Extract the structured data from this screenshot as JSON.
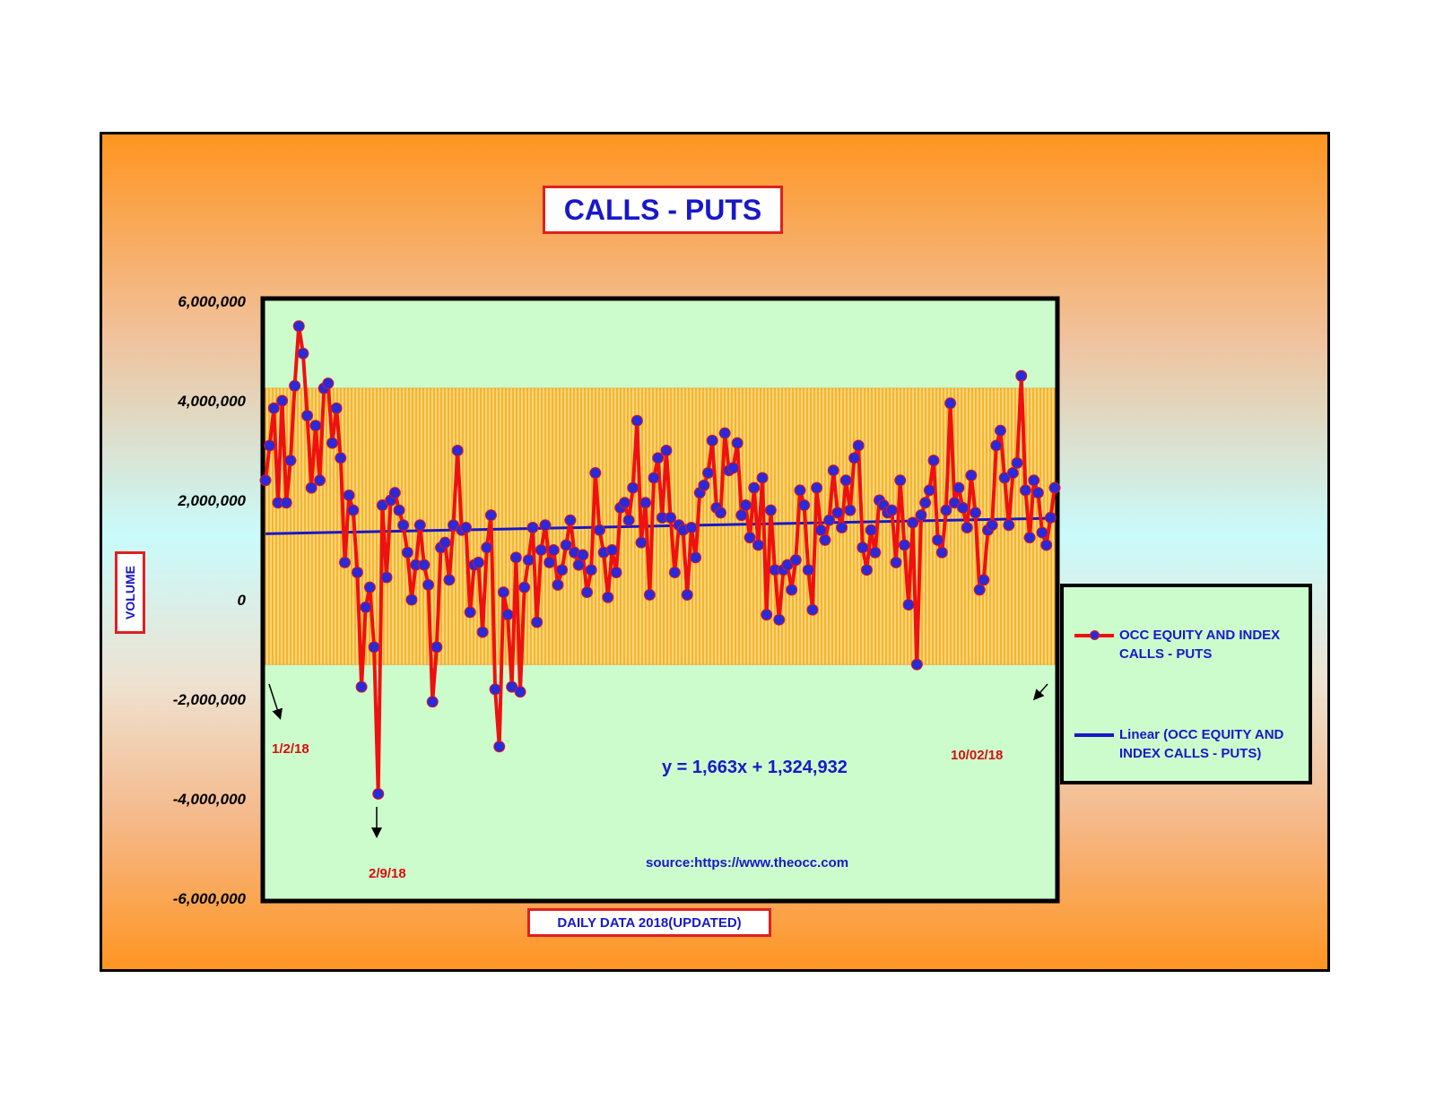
{
  "page": {
    "background": "#ffffff"
  },
  "colors": {
    "series": "#ee1111",
    "marker": "#2a2ad8",
    "trend": "#1818c8",
    "plot_bg": "#ccfccc",
    "band_fill": "#f5b530",
    "band_stroke": "#e8a020"
  },
  "chart_data": {
    "type": "line",
    "title": "CALLS - PUTS",
    "xlabel": "DAILY DATA 2018(UPDATED)",
    "ylabel": "VOLUME",
    "ylim": [
      -6000000,
      6000000
    ],
    "y_ticks": [
      6000000,
      4000000,
      2000000,
      0,
      -2000000,
      -4000000,
      -6000000
    ],
    "y_tick_labels": [
      "6,000,000",
      "4,000,000",
      "2,000,000",
      "0",
      "-2,000,000",
      "-4,000,000",
      "-6,000,000"
    ],
    "x_range": [
      1,
      189
    ],
    "band": {
      "upper": 4250000,
      "lower": -1300000
    },
    "series": [
      {
        "name": "OCC EQUITY AND INDEX CALLS - PUTS",
        "values": [
          2400000,
          3100000,
          3850000,
          1950000,
          4000000,
          1950000,
          2800000,
          4300000,
          5500000,
          4950000,
          3700000,
          2250000,
          3500000,
          2400000,
          4250000,
          4350000,
          3150000,
          3850000,
          2850000,
          750000,
          2100000,
          1800000,
          550000,
          -1750000,
          -150000,
          250000,
          -950000,
          -3900000,
          1900000,
          450000,
          2000000,
          2150000,
          1800000,
          1500000,
          950000,
          0,
          700000,
          1500000,
          700000,
          300000,
          -2050000,
          -950000,
          1050000,
          1150000,
          400000,
          1500000,
          3000000,
          1400000,
          1450000,
          -250000,
          700000,
          750000,
          -650000,
          1050000,
          1700000,
          -1800000,
          -2950000,
          150000,
          -300000,
          -1750000,
          850000,
          -1850000,
          250000,
          800000,
          1450000,
          -450000,
          1000000,
          1500000,
          750000,
          1000000,
          300000,
          600000,
          1100000,
          1600000,
          950000,
          700000,
          900000,
          150000,
          600000,
          2550000,
          1400000,
          950000,
          50000,
          1000000,
          550000,
          1850000,
          1950000,
          1600000,
          2250000,
          3600000,
          1150000,
          1950000,
          100000,
          2450000,
          2850000,
          1650000,
          3000000,
          1650000,
          550000,
          1500000,
          1400000,
          100000,
          1450000,
          850000,
          2150000,
          2300000,
          2550000,
          3200000,
          1850000,
          1750000,
          3350000,
          2600000,
          2650000,
          3150000,
          1700000,
          1900000,
          1250000,
          2250000,
          1100000,
          2450000,
          -300000,
          1800000,
          600000,
          -400000,
          600000,
          700000,
          200000,
          800000,
          2200000,
          1900000,
          600000,
          -200000,
          2250000,
          1400000,
          1200000,
          1600000,
          2600000,
          1750000,
          1450000,
          2400000,
          1800000,
          2850000,
          3100000,
          1050000,
          600000,
          1400000,
          950000,
          2000000,
          1900000,
          1750000,
          1800000,
          750000,
          2400000,
          1100000,
          -100000,
          1550000,
          -1300000,
          1700000,
          1950000,
          2200000,
          2800000,
          1200000,
          950000,
          1800000,
          3950000,
          1950000,
          2250000,
          1850000,
          1450000,
          2500000,
          1750000,
          200000,
          400000,
          1400000,
          1500000,
          3100000,
          3400000,
          2450000,
          1500000,
          2550000,
          2750000,
          4500000,
          2200000,
          1250000,
          2400000,
          2150000,
          1350000,
          1100000,
          1650000,
          2250000
        ]
      },
      {
        "name": "Linear (OCC EQUITY AND INDEX CALLS - PUTS)",
        "type": "trend",
        "slope": 1663,
        "intercept": 1324932
      }
    ],
    "legend": [
      {
        "line1": "OCC EQUITY AND INDEX",
        "line2": "CALLS - PUTS"
      },
      {
        "line1": "Linear (OCC EQUITY AND",
        "line2": "INDEX CALLS - PUTS)"
      }
    ],
    "annotations": {
      "start_date": "1/2/18",
      "low_date": "2/9/18",
      "end_date": "10/02/18",
      "equation": "y = 1,663x + 1,324,932",
      "source": "source:https://www.theocc.com"
    }
  }
}
